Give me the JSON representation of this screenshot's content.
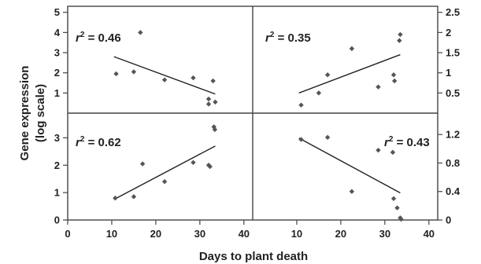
{
  "chart_data": {
    "type": "scatter",
    "xlabel": "Days to plant death",
    "ylabel_lines": [
      "Gene expression",
      "(log scale)"
    ],
    "panels": [
      {
        "id": "top-left",
        "r2_label": "r",
        "r2_sup": "2",
        "r2_value": " = 0.46",
        "xlim": [
          0,
          42
        ],
        "ylim": [
          0,
          5.3
        ],
        "y_ticks": [
          "1",
          "2",
          "3",
          "4",
          "5"
        ],
        "y_tick_values": [
          1,
          2,
          3,
          4,
          5
        ],
        "points": [
          [
            11,
            1.95
          ],
          [
            15,
            2.05
          ],
          [
            16.5,
            4.0
          ],
          [
            22,
            1.65
          ],
          [
            28.5,
            1.75
          ],
          [
            32,
            0.7
          ],
          [
            32,
            0.45
          ],
          [
            33,
            1.6
          ],
          [
            33.5,
            0.55
          ]
        ],
        "fit": [
          [
            10.5,
            2.8
          ],
          [
            33.5,
            0.95
          ]
        ]
      },
      {
        "id": "top-right",
        "r2_label": "r",
        "r2_sup": "2",
        "r2_value": " = 0.35",
        "xlim": [
          0,
          42
        ],
        "ylim": [
          0,
          2.65
        ],
        "y_ticks": [
          "0.5",
          "1",
          "1.5",
          "2",
          "2.5"
        ],
        "y_tick_values": [
          0.5,
          1,
          1.5,
          2,
          2.5
        ],
        "points": [
          [
            11,
            0.2
          ],
          [
            15,
            0.5
          ],
          [
            17,
            0.95
          ],
          [
            22.5,
            1.6
          ],
          [
            28.5,
            0.65
          ],
          [
            32,
            0.95
          ],
          [
            32.2,
            0.8
          ],
          [
            33.3,
            1.8
          ],
          [
            33.5,
            1.95
          ]
        ],
        "fit": [
          [
            10.5,
            0.5
          ],
          [
            33.5,
            1.45
          ]
        ]
      },
      {
        "id": "bottom-left",
        "r2_label": "r",
        "r2_sup": "2",
        "r2_value": " = 0.62",
        "xlim": [
          0,
          42
        ],
        "ylim": [
          0,
          3.9
        ],
        "y_ticks": [
          "0",
          "1",
          "2",
          "3"
        ],
        "y_tick_values": [
          0,
          1,
          2,
          3
        ],
        "x_ticks": [
          "0",
          "10",
          "20",
          "30",
          "40"
        ],
        "x_tick_values": [
          0,
          10,
          20,
          30,
          40
        ],
        "points": [
          [
            10.8,
            0.8
          ],
          [
            15,
            0.85
          ],
          [
            17,
            2.05
          ],
          [
            22,
            1.4
          ],
          [
            28.5,
            2.1
          ],
          [
            32,
            2.0
          ],
          [
            32.3,
            1.95
          ],
          [
            33.2,
            3.4
          ],
          [
            33.4,
            3.3
          ]
        ],
        "fit": [
          [
            10.5,
            0.75
          ],
          [
            33.5,
            2.7
          ]
        ]
      },
      {
        "id": "bottom-right",
        "r2_label": "r",
        "r2_sup": "2",
        "r2_value": " = 0.43",
        "xlim": [
          0,
          42
        ],
        "ylim": [
          0,
          1.5
        ],
        "y_ticks": [
          "0",
          "0.4",
          "0.8",
          "1.2"
        ],
        "y_tick_values": [
          0,
          0.4,
          0.8,
          1.2
        ],
        "x_ticks": [
          "10",
          "20",
          "30",
          "40"
        ],
        "x_tick_values": [
          10,
          20,
          30,
          40
        ],
        "points": [
          [
            11,
            1.13
          ],
          [
            17,
            1.16
          ],
          [
            22.5,
            0.4
          ],
          [
            28.5,
            0.98
          ],
          [
            31.8,
            0.95
          ],
          [
            32,
            0.3
          ],
          [
            32.8,
            0.17
          ],
          [
            33.5,
            0.03
          ],
          [
            33.7,
            0.01
          ]
        ],
        "fit": [
          [
            10.5,
            1.15
          ],
          [
            33.5,
            0.38
          ]
        ]
      }
    ]
  }
}
